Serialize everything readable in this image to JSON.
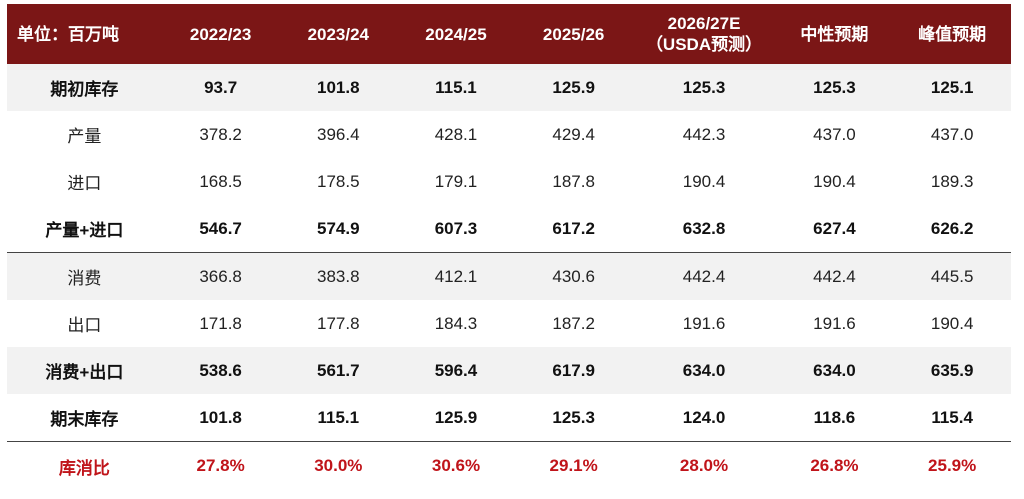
{
  "chart_data": {
    "type": "table",
    "headers": [
      "单位：百万吨",
      "2022/23",
      "2023/24",
      "2024/25",
      "2025/26",
      "2026/27E\n（USDA预测）",
      "中性预期",
      "峰值预期"
    ],
    "rows": [
      {
        "label": "期初库存",
        "values": [
          "93.7",
          "101.8",
          "115.1",
          "125.9",
          "125.3",
          "125.3",
          "125.1"
        ]
      },
      {
        "label": "产量",
        "values": [
          "378.2",
          "396.4",
          "428.1",
          "429.4",
          "442.3",
          "437.0",
          "437.0"
        ]
      },
      {
        "label": "进口",
        "values": [
          "168.5",
          "178.5",
          "179.1",
          "187.8",
          "190.4",
          "190.4",
          "189.3"
        ]
      },
      {
        "label": "产量+进口",
        "values": [
          "546.7",
          "574.9",
          "607.3",
          "617.2",
          "632.8",
          "627.4",
          "626.2"
        ]
      },
      {
        "label": "消费",
        "values": [
          "366.8",
          "383.8",
          "412.1",
          "430.6",
          "442.4",
          "442.4",
          "445.5"
        ]
      },
      {
        "label": "出口",
        "values": [
          "171.8",
          "177.8",
          "184.3",
          "187.2",
          "191.6",
          "191.6",
          "190.4"
        ]
      },
      {
        "label": "消费+出口",
        "values": [
          "538.6",
          "561.7",
          "596.4",
          "617.9",
          "634.0",
          "634.0",
          "635.9"
        ]
      },
      {
        "label": "期末库存",
        "values": [
          "101.8",
          "115.1",
          "125.9",
          "125.3",
          "124.0",
          "118.6",
          "115.4"
        ]
      },
      {
        "label": "库消比",
        "values": [
          "27.8%",
          "30.0%",
          "30.6%",
          "29.1%",
          "28.0%",
          "26.8%",
          "25.9%"
        ]
      }
    ]
  },
  "colors": {
    "header_bg": "#7b1616",
    "header_text": "#ffffff",
    "shade_row": "#f2f2f2",
    "ratio_text": "#c0141a"
  },
  "header_extra": {
    "col5_line1": "2026/27E",
    "col5_line2": "（USDA预测）"
  }
}
